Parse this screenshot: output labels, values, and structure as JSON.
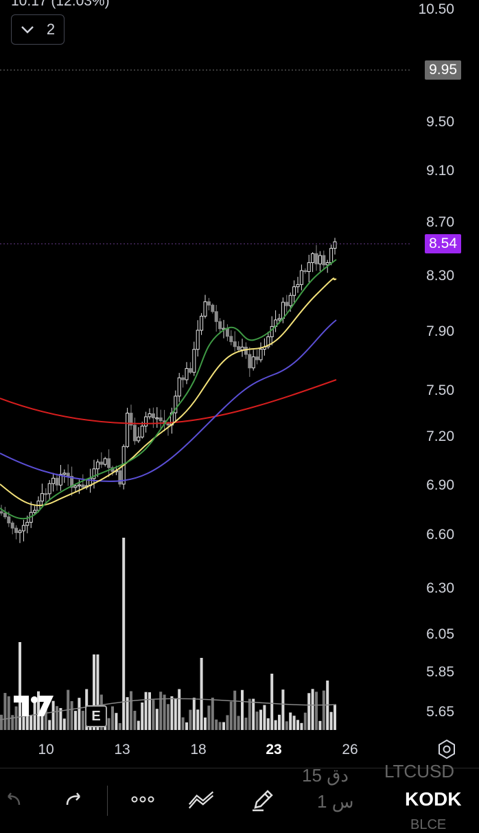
{
  "header": {
    "partial_text": "10.17 (12.03%)",
    "collapse_count": "2"
  },
  "price_axis": {
    "labels": [
      "10.50",
      "9.50",
      "9.10",
      "8.70",
      "8.30",
      "7.90",
      "7.50",
      "7.20",
      "6.90",
      "6.60",
      "6.30",
      "6.05",
      "5.85",
      "5.65"
    ],
    "high_marker": {
      "value": "9.95",
      "color": "#6b6b6b"
    },
    "last_price": {
      "value": "8.54",
      "color": "#9c27f0"
    }
  },
  "time_axis": {
    "labels": [
      "10",
      "13",
      "18",
      "23",
      "26"
    ],
    "bold_label": "23"
  },
  "chart_data": {
    "type": "candlestick",
    "price_range": [
      5.55,
      10.6
    ],
    "indicators": [
      {
        "name": "",
        "color": "#d81e1e"
      },
      {
        "name": "",
        "color": "#5b4fd6"
      },
      {
        "name": "",
        "color": "#f4e27a"
      },
      {
        "name": "",
        "color": "#3f9a45"
      }
    ]
  },
  "event_badge": "E",
  "toolbar": {
    "undo_icon": "undo-icon",
    "redo_icon": "redo-icon",
    "more_icon": "more-icon",
    "trend_icon": "trend-lines-icon",
    "draw_icon": "pencil-icon"
  },
  "ghost_text": {
    "row1_a": "15 دق",
    "row1_b": "LTCUSD",
    "row2_a": "1 س",
    "row2_b": "BLCE"
  },
  "symbol": "KODK"
}
